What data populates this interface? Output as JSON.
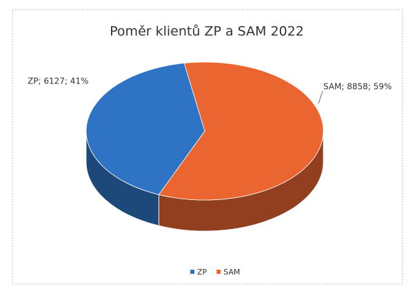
{
  "chart_data": {
    "type": "pie3d",
    "title": "Poměr klientů ZP a SAM  2022",
    "categories": [
      "ZP",
      "SAM"
    ],
    "values": [
      6127,
      8858
    ],
    "value_labels": [
      "ZP; 6127; 41%",
      "SAM; 8858; 59%"
    ],
    "colors": [
      "#2f74c4",
      "#ea6530"
    ],
    "legend": "bottom"
  }
}
